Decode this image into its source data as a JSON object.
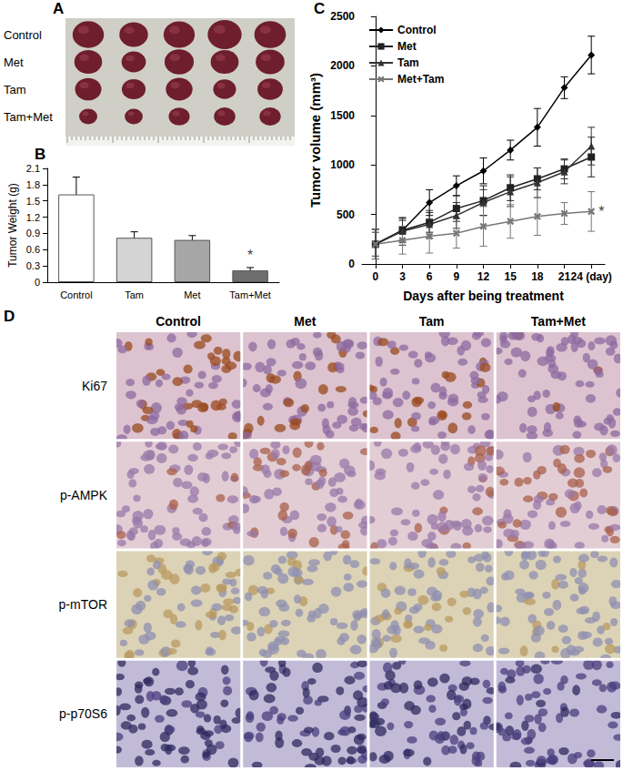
{
  "panel_labels": [
    "A",
    "B",
    "C",
    "D"
  ],
  "photo_panel": {
    "row_labels": [
      "Control",
      "Met",
      "Tam",
      "Tam+Met"
    ]
  },
  "chart_data": [
    {
      "type": "bar",
      "categories": [
        "Control",
        "Tam",
        "Met",
        "Tam+Met"
      ],
      "values": [
        1.62,
        0.82,
        0.78,
        0.22
      ],
      "errors": [
        0.32,
        0.11,
        0.08,
        0.05
      ],
      "colors": [
        "#ffffff",
        "#d4d4d4",
        "#a6a6a6",
        "#6e6e6e"
      ],
      "ylabel": "Tumor Weight (g)",
      "ylim": [
        0,
        2.1
      ],
      "yticks": [
        0,
        0.3,
        0.6,
        0.9,
        1.2,
        1.5,
        1.8,
        2.1
      ],
      "grid": false,
      "annotations": [
        {
          "text": "*",
          "category": "Tam+Met"
        }
      ]
    },
    {
      "type": "line",
      "x": [
        0,
        3,
        6,
        9,
        12,
        15,
        18,
        21,
        24
      ],
      "series": [
        {
          "name": "Control",
          "color": "#000000",
          "marker": "diamond",
          "values": [
            200,
            340,
            620,
            790,
            940,
            1150,
            1380,
            1780,
            2110
          ],
          "errors": [
            150,
            120,
            130,
            100,
            130,
            100,
            190,
            110,
            190
          ]
        },
        {
          "name": "Met",
          "color": "#222222",
          "marker": "square",
          "values": [
            200,
            340,
            420,
            560,
            640,
            770,
            860,
            960,
            1080
          ],
          "errors": [
            150,
            100,
            100,
            130,
            150,
            130,
            110,
            100,
            200
          ]
        },
        {
          "name": "Tam",
          "color": "#333333",
          "marker": "triangle",
          "values": [
            200,
            330,
            400,
            490,
            620,
            730,
            820,
            930,
            1190
          ],
          "errors": [
            120,
            140,
            140,
            130,
            130,
            150,
            150,
            120,
            190
          ]
        },
        {
          "name": "Met+Tam",
          "color": "#777777",
          "marker": "x",
          "values": [
            200,
            240,
            280,
            310,
            380,
            430,
            480,
            510,
            530
          ],
          "errors": [
            150,
            140,
            170,
            150,
            200,
            170,
            190,
            110,
            200
          ]
        }
      ],
      "xlabel": "Days after being treatment",
      "ylabel": "Tumor volume (mm³)",
      "xlim": [
        -1.5,
        25.5
      ],
      "xticks": [
        0,
        3,
        6,
        9,
        12,
        15,
        18,
        21,
        {
          "value": 24,
          "label": "24 (day)"
        }
      ],
      "ylim": [
        0,
        2500
      ],
      "yticks": [
        0,
        500,
        1000,
        1500,
        2000,
        2500
      ],
      "grid": false,
      "legend": "upper left",
      "annotations": [
        {
          "text": "*",
          "series": "Met+Tam"
        }
      ]
    }
  ],
  "ihc_panel": {
    "columns": [
      "Control",
      "Met",
      "Tam",
      "Tam+Met"
    ],
    "rows": [
      "Ki67",
      "p-AMPK",
      "p-mTOR",
      "p-p70S6"
    ]
  }
}
